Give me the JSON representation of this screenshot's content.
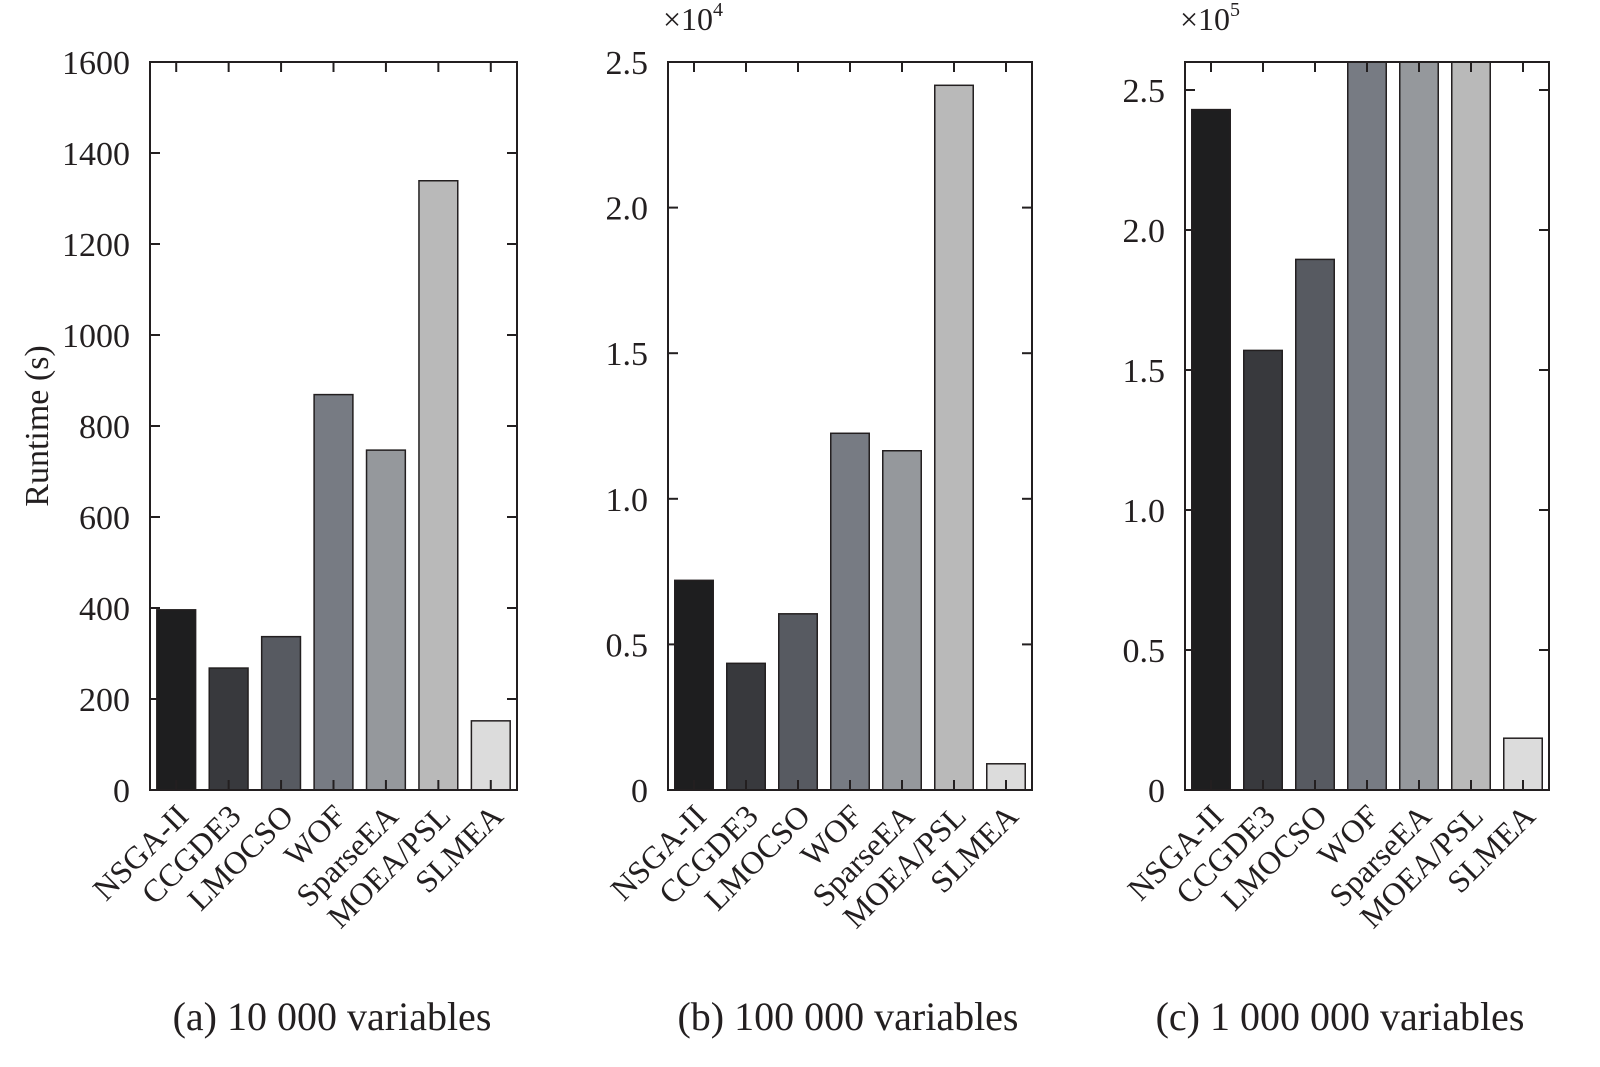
{
  "ylabel": "Runtime (s)",
  "categories": [
    "NSGA-II",
    "CCGDE3",
    "LMOCSO",
    "WOF",
    "SparseEA",
    "MOEA/PSL",
    "SLMEA"
  ],
  "colors": [
    "#1e1e1f",
    "#38393d",
    "#575a61",
    "#777b83",
    "#95989c",
    "#b9b9b9",
    "#dcdcdc"
  ],
  "chart_data": [
    {
      "type": "bar",
      "caption": "(a) 10 000 variables",
      "ylabel": "Runtime (s)",
      "categories": [
        "NSGA-II",
        "CCGDE3",
        "LMOCSO",
        "WOF",
        "SparseEA",
        "MOEA/PSL",
        "SLMEA"
      ],
      "values": [
        396,
        268,
        337,
        869,
        747,
        1339,
        152
      ],
      "ylim": [
        0,
        1600
      ],
      "yticks": [
        0,
        200,
        400,
        600,
        800,
        1000,
        1200,
        1400,
        1600
      ],
      "ytick_labels": [
        "0",
        "200",
        "400",
        "600",
        "800",
        "1000",
        "1200",
        "1400",
        "1600"
      ],
      "multiplier": ""
    },
    {
      "type": "bar",
      "caption": "(b) 100 000 variables",
      "ylabel": "",
      "categories": [
        "NSGA-II",
        "CCGDE3",
        "LMOCSO",
        "WOF",
        "SparseEA",
        "MOEA/PSL",
        "SLMEA"
      ],
      "values": [
        7200,
        4350,
        6050,
        12250,
        11650,
        24200,
        900
      ],
      "ylim": [
        0,
        25000
      ],
      "yticks": [
        0,
        5000,
        10000,
        15000,
        20000,
        25000
      ],
      "ytick_labels": [
        "0",
        "0.5",
        "1.0",
        "1.5",
        "2.0",
        "2.5"
      ],
      "multiplier": "×10",
      "multiplier_exp": "4"
    },
    {
      "type": "bar",
      "caption": "(c) 1 000 000 variables",
      "ylabel": "",
      "categories": [
        "NSGA-II",
        "CCGDE3",
        "LMOCSO",
        "WOF",
        "SparseEA",
        "MOEA/PSL",
        "SLMEA"
      ],
      "values": [
        243000,
        157000,
        189500,
        260000,
        260000,
        260000,
        18500
      ],
      "ylim": [
        0,
        260000
      ],
      "yticks": [
        0,
        50000,
        100000,
        150000,
        200000,
        250000
      ],
      "ytick_labels": [
        "0",
        "0.5",
        "1.0",
        "1.5",
        "2.0",
        "2.5"
      ],
      "multiplier": "×10",
      "multiplier_exp": "5"
    }
  ]
}
